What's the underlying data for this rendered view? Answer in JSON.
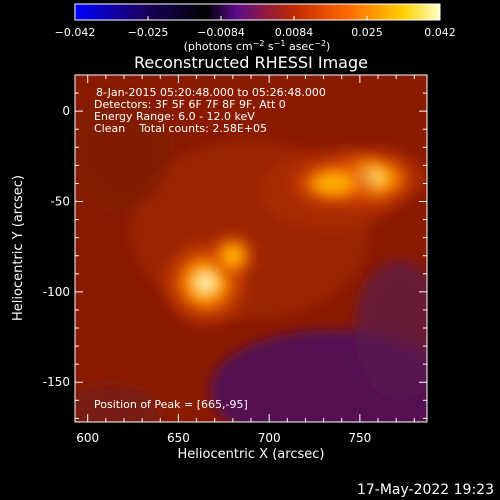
{
  "chart_data": {
    "type": "heatmap",
    "title": "Reconstructed RHESSI Image",
    "xlabel": "Heliocentric X (arcsec)",
    "ylabel": "Heliocentric Y (arcsec)",
    "xlim": [
      593,
      787
    ],
    "ylim": [
      -172,
      20
    ],
    "x_ticks": [
      "600",
      "650",
      "700",
      "750"
    ],
    "x_tick_values": [
      600,
      650,
      700,
      750
    ],
    "y_ticks": [
      "-150",
      "-100",
      "-50",
      "0"
    ],
    "y_tick_values": [
      -150,
      -100,
      -50,
      0
    ],
    "colorbar": {
      "tick_labels": [
        "−0.042",
        "−0.025",
        "−0.0084",
        "0.0084",
        "0.025",
        "0.042"
      ],
      "range": [
        -0.042,
        0.042
      ],
      "unit_label": "(photons cm",
      "unit_sup1": "−2",
      "unit_mid": " s",
      "unit_sup2": "−1",
      "unit_mid2": " asec",
      "unit_sup3": "−2",
      "unit_end": ")",
      "colors": [
        "#0000ff",
        "#1a0066",
        "#000000",
        "#5a0a8a",
        "#c02a00",
        "#ff6a00",
        "#ffd000",
        "#ffffc8"
      ]
    },
    "sources": [
      {
        "x": 665,
        "y": -95,
        "relative_intensity": 1.0
      },
      {
        "x": 680,
        "y": -80,
        "relative_intensity": 0.55
      },
      {
        "x": 755,
        "y": -37,
        "relative_intensity": 0.72
      },
      {
        "x": 735,
        "y": -40,
        "relative_intensity": 0.55
      }
    ],
    "annotations": {
      "time_range": "8-Jan-2015 05:20:48.000 to 05:26:48.000",
      "detectors": "Detectors: 3F 5F 6F 7F 8F 9F, Att 0",
      "energy": "Energy Range: 6.0 - 12.0 keV",
      "clean": "Clean    Total counts: 2.58E+05",
      "peak": "Position of Peak = [665,-95]"
    }
  },
  "footer": {
    "date": "17-May-2022 19:23"
  }
}
